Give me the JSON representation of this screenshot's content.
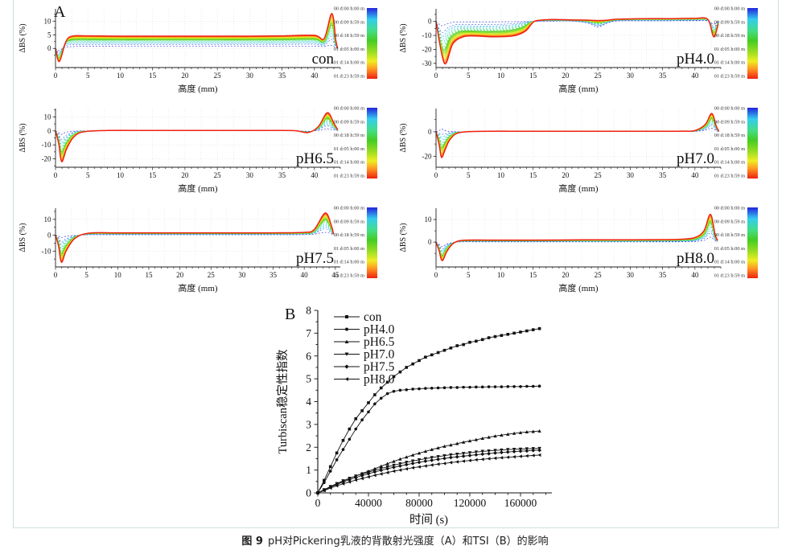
{
  "page": {
    "caption_prefix": "图 9",
    "caption_text": "pH对Pickering乳液的背散射光强度（A）和TSI（B）的影响"
  },
  "colors": {
    "axis": "#222222",
    "grid": "#d9d9d9",
    "series_black": "#111111",
    "time_colormap_stops": [
      "#2222dd",
      "#33ccee",
      "#44dd88",
      "#44cc22",
      "#99dd22",
      "#eeee22",
      "#ff9922",
      "#ee2211"
    ]
  },
  "section_a": {
    "label": "A",
    "xlabel": "高度 (mm)",
    "ylabel": "ΔBS (%)",
    "colorbar_times": [
      "00 d:00 h:00 m",
      "00 d:09 h:59 m",
      "00 d:18 h:59 m",
      "01 d:05 h:00 m",
      "01 d:14 h:00 m",
      "01 d:23 h:59 m"
    ]
  },
  "section_b": {
    "label": "B",
    "xlabel": "时间 (s)",
    "ylabel": "Turbiscan稳定性指数"
  },
  "chart_data": [
    {
      "type": "line",
      "subtype": "profile-family",
      "id": "con",
      "title": "con",
      "xlabel": "高度 (mm)",
      "ylabel": "ΔBS (%)",
      "xlim": [
        0,
        44
      ],
      "xticks": [
        0,
        5,
        10,
        15,
        20,
        25,
        30,
        35,
        40
      ],
      "ylim": [
        -7,
        14.5
      ],
      "yticks": [
        0,
        5,
        10
      ],
      "n_scans": 18,
      "first_scan": [
        [
          0,
          0
        ],
        [
          0.6,
          -0.8
        ],
        [
          1.2,
          0.2
        ],
        [
          2,
          0.6
        ],
        [
          5,
          0.8
        ],
        [
          10,
          0.8
        ],
        [
          15,
          0.8
        ],
        [
          20,
          0.8
        ],
        [
          25,
          0.8
        ],
        [
          30,
          0.8
        ],
        [
          35,
          0.8
        ],
        [
          40,
          0.8
        ],
        [
          41.5,
          0.7
        ],
        [
          42.6,
          1.2
        ],
        [
          43.2,
          0.4
        ],
        [
          43.6,
          0
        ]
      ],
      "last_scan": [
        [
          0,
          0
        ],
        [
          0.6,
          -4.8
        ],
        [
          1.6,
          2.5
        ],
        [
          2.6,
          4.5
        ],
        [
          5,
          4.6
        ],
        [
          10,
          4.5
        ],
        [
          15,
          4.5
        ],
        [
          20,
          4.5
        ],
        [
          25,
          4.5
        ],
        [
          30,
          4.5
        ],
        [
          35,
          4.6
        ],
        [
          40,
          4.8
        ],
        [
          41.5,
          3.6
        ],
        [
          42.7,
          12.8
        ],
        [
          43.3,
          3
        ],
        [
          43.6,
          0
        ]
      ]
    },
    {
      "type": "line",
      "subtype": "profile-family",
      "id": "ph40",
      "title": "pH4.0",
      "xlabel": "高度 (mm)",
      "ylabel": "ΔBS (%)",
      "xlim": [
        0,
        44
      ],
      "xticks": [
        0,
        5,
        10,
        15,
        20,
        25,
        30,
        35,
        40
      ],
      "ylim": [
        -33,
        9
      ],
      "yticks": [
        0,
        -10,
        -20,
        -30
      ],
      "n_scans": 18,
      "first_scan": [
        [
          0,
          0
        ],
        [
          0.8,
          -3
        ],
        [
          1.6,
          -2
        ],
        [
          2.6,
          -0.6
        ],
        [
          4,
          -0.3
        ],
        [
          6,
          -0.3
        ],
        [
          9,
          -0.3
        ],
        [
          12,
          -0.2
        ],
        [
          14,
          -0.1
        ],
        [
          15.2,
          0
        ],
        [
          18,
          0.2
        ],
        [
          21,
          0.2
        ],
        [
          23.5,
          -1.2
        ],
        [
          25,
          -4
        ],
        [
          26.5,
          -1.2
        ],
        [
          28,
          0.3
        ],
        [
          32,
          0.4
        ],
        [
          36,
          0.4
        ],
        [
          40,
          0.5
        ],
        [
          42,
          0.3
        ],
        [
          42.9,
          -2
        ],
        [
          43.6,
          0
        ]
      ],
      "last_scan": [
        [
          0,
          0
        ],
        [
          1.3,
          -30
        ],
        [
          2.6,
          -16
        ],
        [
          4.2,
          -11
        ],
        [
          6,
          -10.4
        ],
        [
          9,
          -11
        ],
        [
          12,
          -10.3
        ],
        [
          13.8,
          -7
        ],
        [
          14.8,
          -1.5
        ],
        [
          15.6,
          0.6
        ],
        [
          18,
          1.4
        ],
        [
          21,
          1.1
        ],
        [
          23.5,
          0.9
        ],
        [
          25,
          0.6
        ],
        [
          26.5,
          0.9
        ],
        [
          28,
          1.6
        ],
        [
          32,
          2
        ],
        [
          36,
          2
        ],
        [
          40,
          2.2
        ],
        [
          42,
          1.4
        ],
        [
          42.9,
          -11
        ],
        [
          43.6,
          -2
        ]
      ]
    },
    {
      "type": "line",
      "subtype": "profile-family",
      "id": "ph65",
      "title": "pH6.5",
      "xlabel": "高度 (mm)",
      "ylabel": "ΔBS (%)",
      "xlim": [
        0,
        44
      ],
      "xticks": [
        0,
        5,
        10,
        15,
        20,
        25,
        30,
        35,
        40
      ],
      "ylim": [
        -26,
        16
      ],
      "yticks": [
        10,
        0,
        -10,
        -20
      ],
      "n_scans": 18,
      "first_scan": [
        [
          0,
          0
        ],
        [
          0.5,
          -1.2
        ],
        [
          0.9,
          -2.5
        ],
        [
          1.6,
          -1
        ],
        [
          2.6,
          -0.3
        ],
        [
          4,
          0
        ],
        [
          8,
          0.1
        ],
        [
          15,
          0.1
        ],
        [
          25,
          0.1
        ],
        [
          33,
          0.1
        ],
        [
          37,
          0.05
        ],
        [
          39,
          -0.2
        ],
        [
          40.6,
          0.4
        ],
        [
          41.9,
          1.5
        ],
        [
          42.9,
          0.8
        ],
        [
          43.6,
          0.1
        ]
      ],
      "last_scan": [
        [
          0,
          0
        ],
        [
          0.5,
          -9
        ],
        [
          0.95,
          -22
        ],
        [
          1.7,
          -13
        ],
        [
          2.7,
          -5
        ],
        [
          4.2,
          -0.8
        ],
        [
          8,
          0.3
        ],
        [
          15,
          0.3
        ],
        [
          25,
          0.3
        ],
        [
          33,
          0.3
        ],
        [
          37,
          0.15
        ],
        [
          39,
          -1.2
        ],
        [
          40.6,
          3
        ],
        [
          42,
          13
        ],
        [
          43,
          5.5
        ],
        [
          43.6,
          0.8
        ]
      ]
    },
    {
      "type": "line",
      "subtype": "profile-family",
      "id": "ph70",
      "title": "pH7.0",
      "xlabel": "高度 (mm)",
      "ylabel": "ΔBS (%)",
      "xlim": [
        0,
        44
      ],
      "xticks": [
        0,
        5,
        10,
        15,
        20,
        25,
        30,
        35,
        40
      ],
      "ylim": [
        -29,
        19
      ],
      "yticks": [
        0,
        -20
      ],
      "n_scans": 18,
      "first_scan": [
        [
          0,
          0
        ],
        [
          0.5,
          1
        ],
        [
          0.85,
          2.2
        ],
        [
          1.4,
          1
        ],
        [
          2.1,
          0.3
        ],
        [
          3.6,
          0.05
        ],
        [
          8,
          0.15
        ],
        [
          15,
          0.15
        ],
        [
          25,
          0.15
        ],
        [
          33,
          0.15
        ],
        [
          38,
          0.2
        ],
        [
          40,
          0.3
        ],
        [
          41.6,
          1.4
        ],
        [
          42.6,
          3
        ],
        [
          43.3,
          1
        ],
        [
          43.7,
          0
        ]
      ],
      "last_scan": [
        [
          0,
          0
        ],
        [
          0.5,
          -11
        ],
        [
          0.85,
          -21
        ],
        [
          1.45,
          -14
        ],
        [
          2.2,
          -6
        ],
        [
          3.7,
          -0.6
        ],
        [
          8,
          0.4
        ],
        [
          15,
          0.4
        ],
        [
          25,
          0.4
        ],
        [
          33,
          0.4
        ],
        [
          38,
          0.5
        ],
        [
          40,
          1
        ],
        [
          41.6,
          6
        ],
        [
          42.6,
          15
        ],
        [
          43.3,
          4.5
        ],
        [
          43.7,
          0.5
        ]
      ]
    },
    {
      "type": "line",
      "subtype": "profile-family",
      "id": "ph75",
      "title": "pH7.5",
      "xlabel": "高度 (mm)",
      "ylabel": "ΔBS (%)",
      "xlim": [
        0,
        45.8
      ],
      "xticks": [
        0,
        5,
        10,
        15,
        20,
        25,
        30,
        35,
        40,
        45
      ],
      "ylim": [
        -20,
        17
      ],
      "yticks": [
        10,
        0,
        -10
      ],
      "n_scans": 18,
      "first_scan": [
        [
          0,
          0
        ],
        [
          0.5,
          -0.6
        ],
        [
          0.95,
          -1.6
        ],
        [
          1.6,
          -0.8
        ],
        [
          3,
          -0.2
        ],
        [
          5.2,
          0.25
        ],
        [
          10,
          0.3
        ],
        [
          18,
          0.3
        ],
        [
          27,
          0.3
        ],
        [
          35,
          0.3
        ],
        [
          40,
          0.35
        ],
        [
          41.6,
          0.7
        ],
        [
          43.3,
          1.8
        ],
        [
          44.3,
          0.9
        ],
        [
          44.7,
          0.2
        ]
      ],
      "last_scan": [
        [
          0,
          0
        ],
        [
          0.5,
          -7
        ],
        [
          0.95,
          -17
        ],
        [
          1.7,
          -10
        ],
        [
          3.1,
          -2
        ],
        [
          5.4,
          1.3
        ],
        [
          10,
          1.5
        ],
        [
          18,
          1.5
        ],
        [
          27,
          1.5
        ],
        [
          35,
          1.5
        ],
        [
          40,
          1.8
        ],
        [
          41.6,
          3.5
        ],
        [
          43.4,
          14
        ],
        [
          44.4,
          5.5
        ],
        [
          44.7,
          0.8
        ]
      ]
    },
    {
      "type": "line",
      "subtype": "profile-family",
      "id": "ph80",
      "title": "pH8.0",
      "xlabel": "高度 (mm)",
      "ylabel": "ΔBS (%)",
      "xlim": [
        0,
        44
      ],
      "xticks": [
        0,
        5,
        10,
        15,
        20,
        25,
        30,
        35,
        40
      ],
      "ylim": [
        -11,
        15
      ],
      "yticks": [
        10,
        0
      ],
      "n_scans": 18,
      "first_scan": [
        [
          0,
          0
        ],
        [
          0.45,
          -0.8
        ],
        [
          0.95,
          -2
        ],
        [
          1.6,
          -0.9
        ],
        [
          2.6,
          -0.2
        ],
        [
          4,
          0.1
        ],
        [
          8,
          0.1
        ],
        [
          15,
          0.1
        ],
        [
          23,
          0.1
        ],
        [
          30,
          0.1
        ],
        [
          35,
          0.12
        ],
        [
          38,
          0.15
        ],
        [
          40,
          0.25
        ],
        [
          41.4,
          0.8
        ],
        [
          42.4,
          2.2
        ],
        [
          43.1,
          0.7
        ],
        [
          43.5,
          0.1
        ]
      ],
      "last_scan": [
        [
          0,
          0
        ],
        [
          0.45,
          -3.5
        ],
        [
          0.95,
          -8.2
        ],
        [
          1.7,
          -4
        ],
        [
          2.7,
          -0.5
        ],
        [
          4.2,
          0.8
        ],
        [
          8,
          0.9
        ],
        [
          15,
          0.9
        ],
        [
          23,
          1
        ],
        [
          30,
          1
        ],
        [
          35,
          1.1
        ],
        [
          38,
          1.3
        ],
        [
          40,
          2
        ],
        [
          41.4,
          5
        ],
        [
          42.4,
          12.3
        ],
        [
          43.1,
          3.5
        ],
        [
          43.5,
          0.8
        ]
      ]
    },
    {
      "type": "line",
      "subtype": "marker-series",
      "id": "tsi",
      "xlabel": "时间 (s)",
      "ylabel": "Turbiscan稳定性指数",
      "xlim": [
        0,
        185000
      ],
      "xticks": [
        0,
        40000,
        80000,
        120000,
        160000
      ],
      "x_minor_step": 10000,
      "ylim": [
        0,
        8
      ],
      "yticks": [
        0,
        1,
        2,
        3,
        4,
        5,
        6,
        7,
        8
      ],
      "y_minor_step": 0.5,
      "legend_position": "top-left",
      "x_start": 0,
      "x_step": 5000,
      "n_points": 36,
      "series": [
        {
          "name": "con",
          "marker": "square",
          "y": [
            0,
            0.55,
            1.15,
            1.75,
            2.3,
            2.8,
            3.25,
            3.6,
            3.95,
            4.3,
            4.6,
            4.85,
            5.1,
            5.3,
            5.5,
            5.65,
            5.8,
            5.95,
            6.05,
            6.15,
            6.25,
            6.35,
            6.45,
            6.5,
            6.6,
            6.65,
            6.72,
            6.8,
            6.85,
            6.9,
            6.95,
            7.0,
            7.05,
            7.1,
            7.15,
            7.2
          ]
        },
        {
          "name": "pH4.0",
          "marker": "circle",
          "y": [
            0,
            0.45,
            0.95,
            1.45,
            1.9,
            2.35,
            2.8,
            3.2,
            3.55,
            3.9,
            4.15,
            4.35,
            4.45,
            4.5,
            4.52,
            4.55,
            4.56,
            4.58,
            4.59,
            4.6,
            4.61,
            4.62,
            4.62,
            4.63,
            4.63,
            4.64,
            4.64,
            4.65,
            4.65,
            4.65,
            4.66,
            4.66,
            4.66,
            4.67,
            4.67,
            4.68
          ]
        },
        {
          "name": "pH6.5",
          "marker": "triangle-up",
          "y": [
            0,
            0.13,
            0.27,
            0.4,
            0.52,
            0.63,
            0.74,
            0.85,
            0.95,
            1.06,
            1.17,
            1.28,
            1.38,
            1.48,
            1.57,
            1.66,
            1.74,
            1.82,
            1.9,
            1.97,
            2.04,
            2.1,
            2.16,
            2.22,
            2.28,
            2.33,
            2.39,
            2.44,
            2.49,
            2.53,
            2.57,
            2.61,
            2.64,
            2.67,
            2.69,
            2.71
          ]
        },
        {
          "name": "pH7.0",
          "marker": "triangle-down",
          "y": [
            0,
            0.14,
            0.28,
            0.41,
            0.53,
            0.64,
            0.74,
            0.83,
            0.91,
            0.99,
            1.07,
            1.14,
            1.21,
            1.28,
            1.34,
            1.4,
            1.45,
            1.5,
            1.55,
            1.59,
            1.63,
            1.67,
            1.7,
            1.73,
            1.76,
            1.79,
            1.82,
            1.84,
            1.86,
            1.88,
            1.9,
            1.91,
            1.92,
            1.93,
            1.94,
            1.95
          ]
        },
        {
          "name": "pH7.5",
          "marker": "diamond",
          "y": [
            0,
            0.12,
            0.25,
            0.37,
            0.48,
            0.58,
            0.67,
            0.76,
            0.84,
            0.92,
            0.99,
            1.06,
            1.12,
            1.18,
            1.24,
            1.29,
            1.34,
            1.39,
            1.43,
            1.47,
            1.51,
            1.55,
            1.58,
            1.61,
            1.64,
            1.67,
            1.7,
            1.72,
            1.75,
            1.77,
            1.79,
            1.81,
            1.83,
            1.84,
            1.86,
            1.87
          ]
        },
        {
          "name": "pH8.0",
          "marker": "triangle-left",
          "y": [
            0,
            0.1,
            0.21,
            0.31,
            0.4,
            0.48,
            0.56,
            0.63,
            0.7,
            0.77,
            0.83,
            0.89,
            0.95,
            1.0,
            1.05,
            1.1,
            1.14,
            1.18,
            1.22,
            1.26,
            1.29,
            1.33,
            1.36,
            1.39,
            1.42,
            1.45,
            1.47,
            1.5,
            1.52,
            1.54,
            1.56,
            1.58,
            1.6,
            1.62,
            1.64,
            1.66
          ]
        }
      ]
    }
  ]
}
